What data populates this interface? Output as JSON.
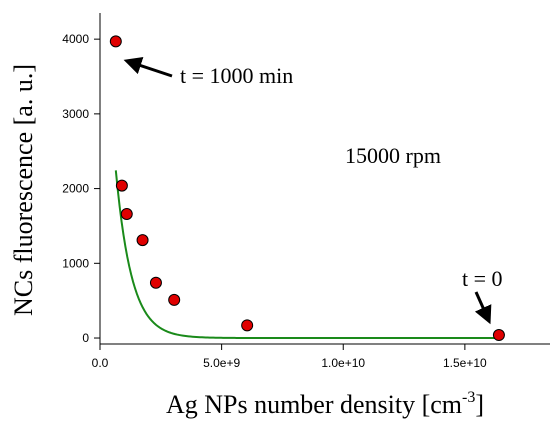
{
  "chart_data": {
    "type": "scatter",
    "xlabel": "Ag NPs number density [cm",
    "xlabel_sup": "-3",
    "xlabel_tail": "]",
    "ylabel": "NCs fluorescence [a. u.]",
    "xlim": [
      0,
      18500000000.0
    ],
    "ylim": [
      -80,
      4350
    ],
    "x_ticks": [
      0,
      5000000000.0,
      10000000000.0,
      15000000000.0
    ],
    "x_tick_labels": [
      "0.0",
      "5.0e+9",
      "1.0e+10",
      "1.5e+10"
    ],
    "y_ticks": [
      0,
      1000,
      2000,
      3000,
      4000
    ],
    "y_tick_labels": [
      "0",
      "1000",
      "2000",
      "3000",
      "4000"
    ],
    "grid": false,
    "series": [
      {
        "type": "scatter",
        "color": "#e00000",
        "points": [
          {
            "x": 650000000.0,
            "y": 3970
          },
          {
            "x": 900000000.0,
            "y": 2040
          },
          {
            "x": 1100000000.0,
            "y": 1660
          },
          {
            "x": 1750000000.0,
            "y": 1310
          },
          {
            "x": 2300000000.0,
            "y": 740
          },
          {
            "x": 3050000000.0,
            "y": 510
          },
          {
            "x": 6050000000.0,
            "y": 170
          },
          {
            "x": 16400000000.0,
            "y": 40
          }
        ]
      },
      {
        "type": "line",
        "color": "#1a8a1a",
        "fit": "exponential decay",
        "amplitude": 6100,
        "decay": 650000000.0,
        "x_range": [
          650000000.0,
          16400000000.0
        ]
      }
    ],
    "annotations": [
      {
        "text": "t = 1000 min",
        "arrow_to": {
          "x": 650000000.0,
          "y": 3970
        }
      },
      {
        "text": "15000 rpm"
      },
      {
        "text": "t = 0",
        "arrow_to": {
          "x": 16400000000.0,
          "y": 40
        }
      }
    ]
  }
}
